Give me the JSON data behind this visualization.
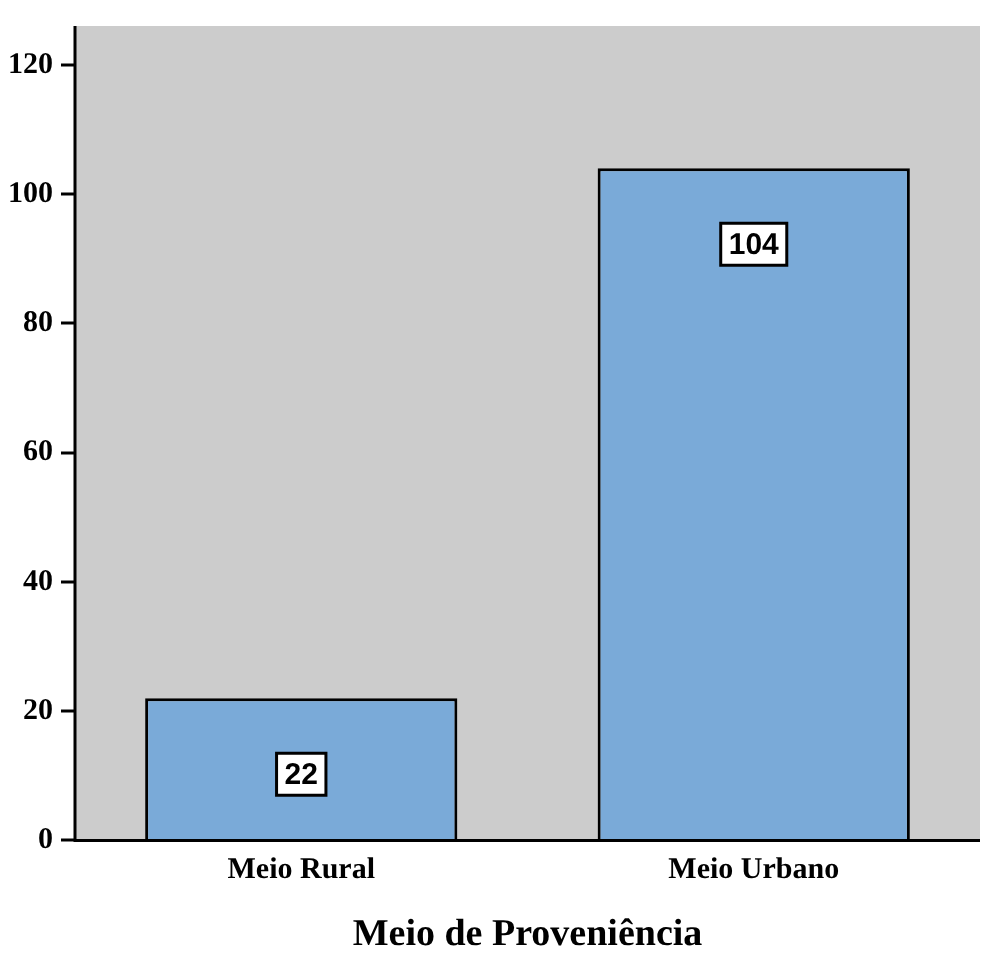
{
  "chart_data": {
    "type": "bar",
    "xlabel": "Meio de Proveniência",
    "categories": [
      "Meio Rural",
      "Meio Urbano"
    ],
    "values": [
      22,
      104
    ],
    "color": "#7aaad8",
    "ylim": [
      0,
      126
    ],
    "yticks": [
      0,
      20,
      40,
      60,
      80,
      100,
      120
    ],
    "grid": false,
    "legend": false,
    "data_labels": true
  }
}
